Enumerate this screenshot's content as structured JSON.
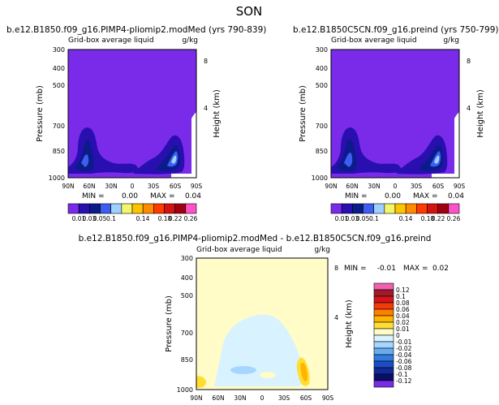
{
  "figure": {
    "title": "SON"
  },
  "chart_data": [
    {
      "type": "contour",
      "title": "b.e12.B1850.f09_g16.PIMP4-pliomip2.modMed (yrs 790-839)",
      "subtitle_left": "Grid-box average liquid",
      "units": "g/kg",
      "ylabel": "Pressure (mb)",
      "y2label": "Height (km)",
      "x_ticks": [
        "90N",
        "60N",
        "30N",
        "0",
        "30S",
        "60S",
        "90S"
      ],
      "y_ticks": [
        "300",
        "400",
        "500",
        "700",
        "850",
        "1000"
      ],
      "y2_ticks": [
        "8",
        "4"
      ],
      "xlim": [
        90,
        -90
      ],
      "ylim": [
        1000,
        300
      ],
      "stats": {
        "min_label": "MIN =",
        "min": "0.00",
        "max_label": "MAX =",
        "max": "0.04"
      },
      "levels": [
        "0.01",
        "0.03",
        "0.05",
        "0.1",
        "0.14",
        "0.18",
        "0.22",
        "0.26"
      ],
      "level_colors": [
        "#7a2bea",
        "#2a0fb0",
        "#0b1b8a",
        "#3d5ef0",
        "#9fd0ff",
        "#f3f56a",
        "#ffc400",
        "#ff8c00",
        "#ff3b00",
        "#d41212",
        "#a00010",
        "#ff52c8"
      ],
      "features": [
        {
          "kind": "cloud",
          "lat": 54,
          "p": 905,
          "level_index": 2,
          "intensity": "high"
        },
        {
          "kind": "cloud",
          "lat": 10,
          "p": 935,
          "level_index": 1,
          "intensity": "low"
        },
        {
          "kind": "cloud",
          "lat": -48,
          "p": 885,
          "level_index": 3,
          "intensity": "high"
        }
      ]
    },
    {
      "type": "contour",
      "title": "b.e12.B1850C5CN.f09_g16.preind (yrs 750-799)",
      "subtitle_left": "Grid-box average liquid",
      "units": "g/kg",
      "ylabel": "Pressure (mb)",
      "y2label": "Height (km)",
      "x_ticks": [
        "90N",
        "60N",
        "30N",
        "0",
        "30S",
        "60S",
        "90S"
      ],
      "y_ticks": [
        "300",
        "400",
        "500",
        "700",
        "850",
        "1000"
      ],
      "y2_ticks": [
        "8",
        "4"
      ],
      "xlim": [
        90,
        -90
      ],
      "ylim": [
        1000,
        300
      ],
      "stats": {
        "min_label": "MIN =",
        "min": "0.00",
        "max_label": "MAX =",
        "max": "0.04"
      },
      "levels": [
        "0.01",
        "0.03",
        "0.05",
        "0.1",
        "0.14",
        "0.18",
        "0.22",
        "0.26"
      ],
      "level_colors": [
        "#7a2bea",
        "#2a0fb0",
        "#0b1b8a",
        "#3d5ef0",
        "#9fd0ff",
        "#f3f56a",
        "#ffc400",
        "#ff8c00",
        "#ff3b00",
        "#d41212",
        "#a00010",
        "#ff52c8"
      ],
      "features": [
        {
          "kind": "cloud",
          "lat": 55,
          "p": 900,
          "level_index": 2,
          "intensity": "high"
        },
        {
          "kind": "cloud",
          "lat": 10,
          "p": 935,
          "level_index": 1,
          "intensity": "low"
        },
        {
          "kind": "cloud",
          "lat": -48,
          "p": 885,
          "level_index": 3,
          "intensity": "high"
        }
      ]
    },
    {
      "type": "contour",
      "title": "b.e12.B1850.f09_g16.PIMP4-pliomip2.modMed - b.e12.B1850C5CN.f09_g16.preind",
      "subtitle_left": "Grid-box average liquid",
      "units": "g/kg",
      "ylabel": "Pressure (mb)",
      "y2label": "Height (km)",
      "x_ticks": [
        "90N",
        "60N",
        "30N",
        "0",
        "30S",
        "60S",
        "90S"
      ],
      "y_ticks": [
        "300",
        "400",
        "500",
        "700",
        "850",
        "1000"
      ],
      "y2_ticks": [
        "8",
        "4"
      ],
      "xlim": [
        90,
        -90
      ],
      "ylim": [
        1000,
        300
      ],
      "stats": {
        "min_label": "MIN =",
        "min": "-0.01",
        "max_label": "MAX =",
        "max": "0.02"
      },
      "levels": [
        "0.12",
        "0.1",
        "0.08",
        "0.06",
        "0.04",
        "0.02",
        "0.01",
        "0",
        "-0.01",
        "-0.02",
        "-0.04",
        "-0.06",
        "-0.08",
        "-0.1",
        "-0.12"
      ],
      "level_colors": [
        "#f060b0",
        "#a01a2a",
        "#d4141c",
        "#f23a0a",
        "#ff7d00",
        "#ffb400",
        "#ffde33",
        "#fffcc8",
        "#d8f2ff",
        "#a6d6ff",
        "#68acf0",
        "#2f7be0",
        "#1d4cc8",
        "#122a96",
        "#0a0e66",
        "#7a2bea"
      ],
      "features": [
        {
          "kind": "dome",
          "lat_range": [
            68,
            -40
          ],
          "p_top": 565,
          "level_index": 8,
          "intensity": "negative"
        },
        {
          "kind": "cloud",
          "lat": -52,
          "p": 880,
          "level_index": 5,
          "intensity": "positive"
        },
        {
          "kind": "cloud",
          "lat": 84,
          "p": 985,
          "level_index": 5,
          "intensity": "small"
        }
      ]
    }
  ]
}
